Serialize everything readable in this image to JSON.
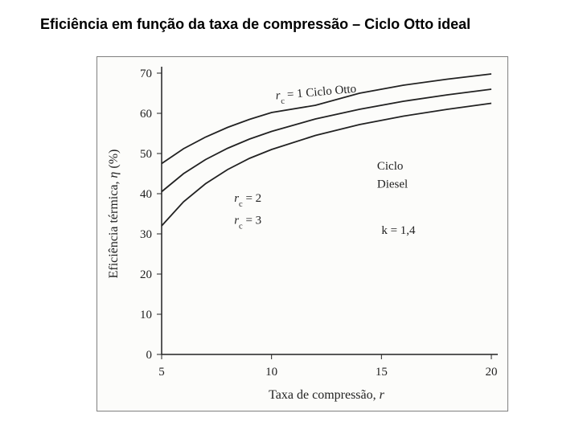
{
  "title": "Eficiência em função da taxa de compressão – Ciclo Otto ideal",
  "chart": {
    "type": "line",
    "background_color": "#fcfcfa",
    "border_color": "#808080",
    "ink_color": "#222222",
    "xlabel": "Taxa de compressão, r",
    "ylabel": "Eficiência térmica, η (%)",
    "xlim": [
      5,
      20
    ],
    "ylim": [
      0,
      70
    ],
    "xtick_step": 5,
    "ytick_step": 10,
    "xticks": [
      5,
      10,
      15,
      20
    ],
    "yticks": [
      0,
      10,
      20,
      30,
      40,
      50,
      60,
      70
    ],
    "label_fontsize_pt": 16,
    "tick_fontsize_pt": 15,
    "annot_fontsize_pt": 15,
    "line_width": 1.8,
    "series": [
      {
        "name": "rc=1 Otto",
        "x": [
          5,
          6,
          7,
          8,
          9,
          10,
          12,
          14,
          16,
          18,
          20
        ],
        "y": [
          47.5,
          51.2,
          54.1,
          56.5,
          58.5,
          60.2,
          62.0,
          65.0,
          67.0,
          68.5,
          69.8
        ],
        "color": "#222222"
      },
      {
        "name": "rc=2",
        "x": [
          5,
          6,
          7,
          8,
          9,
          10,
          12,
          14,
          16,
          18,
          20
        ],
        "y": [
          40.5,
          45.0,
          48.5,
          51.3,
          53.6,
          55.5,
          58.6,
          61.0,
          63.0,
          64.6,
          66.0
        ],
        "color": "#222222"
      },
      {
        "name": "rc=3",
        "x": [
          5,
          6,
          7,
          8,
          9,
          10,
          12,
          14,
          16,
          18,
          20
        ],
        "y": [
          32.0,
          38.0,
          42.5,
          46.0,
          48.8,
          51.0,
          54.5,
          57.2,
          59.3,
          61.0,
          62.5
        ],
        "color": "#222222"
      }
    ],
    "annotations": {
      "curve1_label": "r_c = 1  Ciclo Otto",
      "curve2_label": "r_c = 2",
      "curve3_label": "r_c = 3",
      "diesel_label": "Ciclo Diesel",
      "k_label": "k = 1,4"
    }
  }
}
